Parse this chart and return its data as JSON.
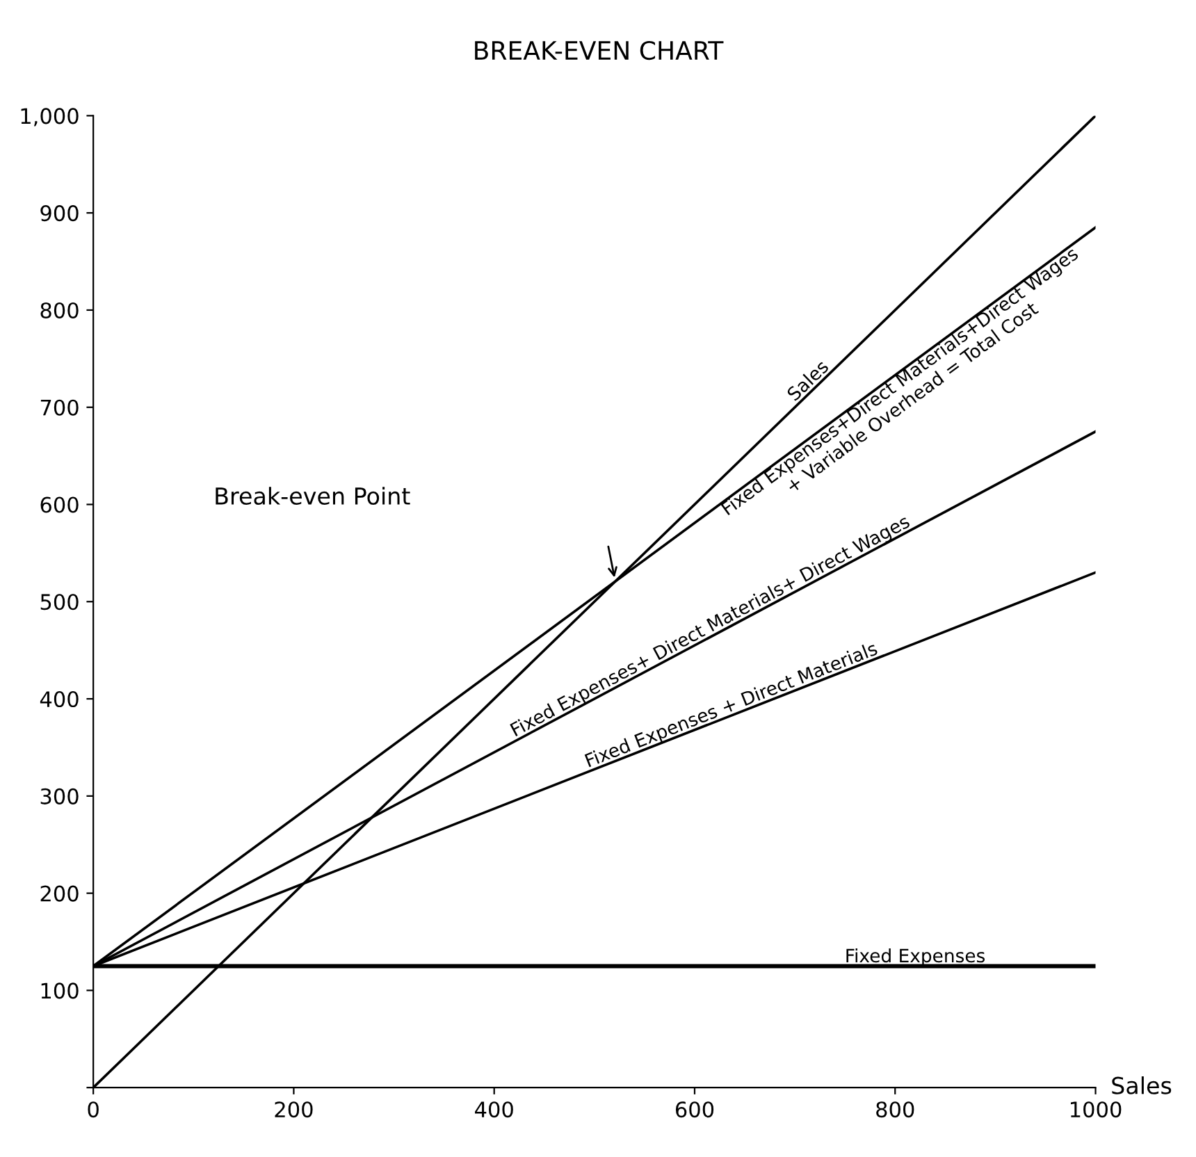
{
  "chart_data": {
    "type": "line",
    "title": "BREAK-EVEN CHART",
    "xlabel": "Sales",
    "x": [
      0,
      1000
    ],
    "series": [
      {
        "name": "Sales",
        "color": "#000000",
        "values": [
          0,
          1000
        ]
      },
      {
        "name": "Fixed Expenses+Direct Materials+Direct Wages\n+ Variable Overhead = Total Cost",
        "color": "#000000",
        "values": [
          125,
          885
        ]
      },
      {
        "name": "Fixed Expenses+ Direct Materials+ Direct Wages",
        "color": "#000000",
        "values": [
          125,
          675
        ]
      },
      {
        "name": "Fixed Expenses + Direct Materials",
        "color": "#000000",
        "values": [
          125,
          530
        ]
      },
      {
        "name": "Fixed Expenses",
        "color": "#000000",
        "values": [
          125,
          125
        ]
      }
    ],
    "annotations": [
      "Break-even Point"
    ],
    "xlim": [
      0,
      1000
    ],
    "ylim": [
      0,
      1000
    ],
    "xticks": [
      0,
      200,
      400,
      600,
      800,
      {
        "value": 1000,
        "label": "1000"
      }
    ],
    "yticks": [
      {
        "value": 0,
        "label": null
      },
      100,
      200,
      300,
      400,
      500,
      600,
      700,
      800,
      900,
      {
        "value": 1000,
        "label": "1,000"
      }
    ],
    "grid": false,
    "legend": false,
    "marker": "none",
    "line_style": "solid"
  }
}
